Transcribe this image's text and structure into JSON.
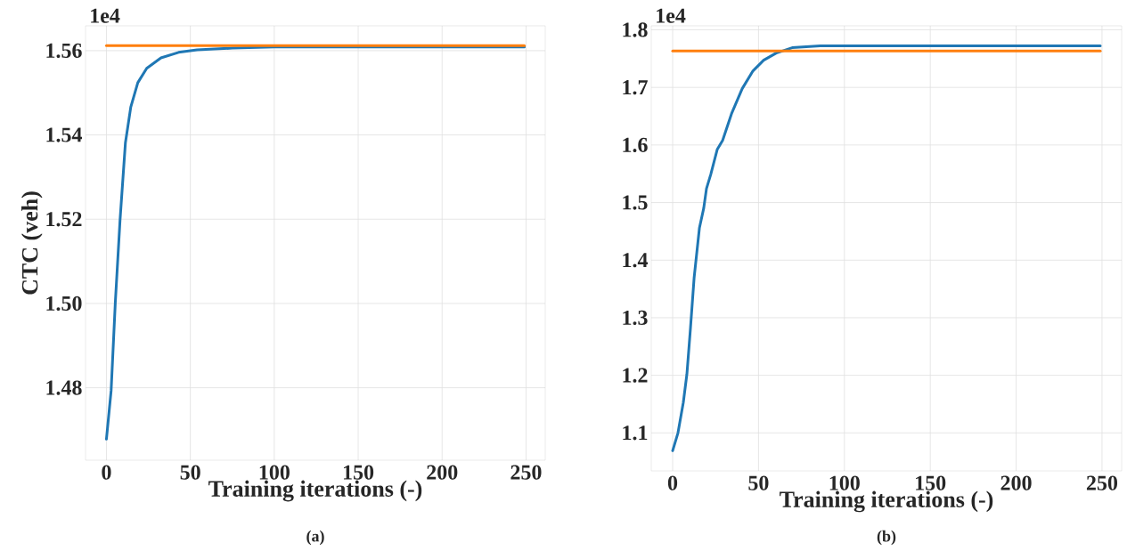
{
  "chart_data": [
    {
      "type": "line",
      "xlabel": "Training iterations (-)",
      "ylabel": "CTC (veh)",
      "annotations": [
        "1e4",
        "(a)"
      ],
      "xlim": [
        -12.45,
        261.45
      ],
      "ylim": [
        1.4628,
        1.5659
      ],
      "xticks": [
        0,
        50,
        100,
        150,
        200,
        250
      ],
      "yticks": [
        {
          "value": 1.48,
          "label": "1.48"
        },
        {
          "value": 1.5,
          "label": "1.50"
        },
        {
          "value": 1.52,
          "label": "1.52"
        },
        {
          "value": 1.54,
          "label": "1.54"
        },
        {
          "value": 1.56,
          "label": "1.56"
        }
      ],
      "grid": true,
      "series": [
        {
          "color": "#1f77b4",
          "x": [
            0,
            2.8,
            5.3,
            8.1,
            11.3,
            14.5,
            18.7,
            24,
            32.5,
            43,
            54,
            75,
            100,
            249
          ],
          "values": [
            1.4678,
            1.4793,
            1.5003,
            1.5197,
            1.5381,
            1.5466,
            1.5524,
            1.5558,
            1.5583,
            1.5596,
            1.5602,
            1.5606,
            1.5609,
            1.5609
          ]
        },
        {
          "color": "#ff7f0e",
          "x": [
            0,
            249
          ],
          "values": [
            1.5612,
            1.5612
          ]
        }
      ]
    },
    {
      "type": "line",
      "xlabel": "Training iterations (-)",
      "annotations": [
        "1e4",
        "(b)"
      ],
      "xlim": [
        -12.45,
        261.45
      ],
      "ylim": [
        1.034,
        1.807
      ],
      "xticks": [
        0,
        50,
        100,
        150,
        200,
        250
      ],
      "yticks": [
        1.1,
        1.2,
        1.3,
        1.4,
        1.5,
        1.6,
        1.7,
        1.8
      ],
      "grid": true,
      "series": [
        {
          "color": "#1f77b4",
          "x": [
            0,
            3.1,
            6.2,
            8.3,
            10.4,
            12.5,
            15.6,
            18.1,
            19.7,
            22.2,
            26,
            29.1,
            34.3,
            40.5,
            46.8,
            53,
            60.3,
            69.6,
            86,
            249
          ],
          "values": [
            1.0689,
            1.1,
            1.1526,
            1.2021,
            1.2826,
            1.3694,
            1.4561,
            1.4902,
            1.5243,
            1.5491,
            1.5925,
            1.608,
            1.6544,
            1.6978,
            1.7288,
            1.7473,
            1.7597,
            1.769,
            1.7721,
            1.7721
          ]
        },
        {
          "color": "#ff7f0e",
          "x": [
            0,
            249
          ],
          "values": [
            1.7634,
            1.7634
          ]
        }
      ]
    }
  ]
}
